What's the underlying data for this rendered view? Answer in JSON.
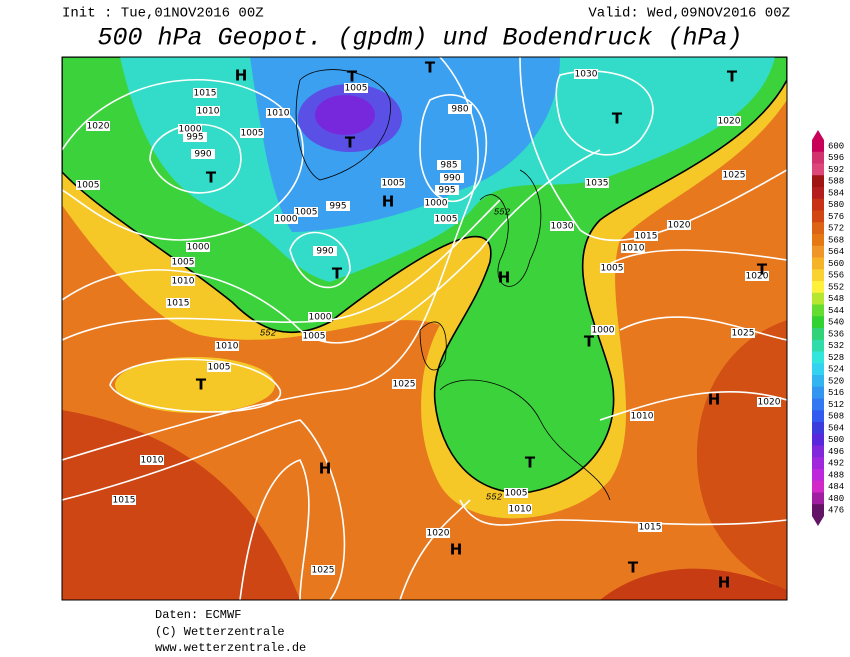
{
  "header": {
    "init": "Init : Tue,01NOV2016 00Z",
    "valid": "Valid: Wed,09NOV2016 00Z",
    "title": "500 hPa Geopot. (gpdm) und Bodendruck (hPa)"
  },
  "colorbar": {
    "levels": [
      600,
      596,
      592,
      588,
      584,
      580,
      576,
      572,
      568,
      564,
      560,
      556,
      552,
      548,
      544,
      540,
      536,
      532,
      528,
      524,
      520,
      516,
      512,
      508,
      504,
      500,
      496,
      492,
      488,
      484,
      480,
      476
    ],
    "colors": [
      "#c8005a",
      "#d2326e",
      "#dc4678",
      "#a01414",
      "#b41e1e",
      "#c83214",
      "#d24614",
      "#dc6414",
      "#e67814",
      "#f09628",
      "#f5b428",
      "#fad232",
      "#fff03c",
      "#b4e632",
      "#64dc32",
      "#32d232",
      "#32d278",
      "#32dcaa",
      "#32e6dc",
      "#32d2f0",
      "#32b4f0",
      "#3296f0",
      "#3278f0",
      "#325af0",
      "#3c3cdc",
      "#5a28dc",
      "#8228dc",
      "#a028dc",
      "#be28dc",
      "#d228c8",
      "#a01ea0",
      "#641464"
    ]
  },
  "map": {
    "isobar_labels": [
      "1015",
      "1010",
      "1020",
      "1000",
      "995",
      "990",
      "1005",
      "1010",
      "1005",
      "1005",
      "980",
      "985",
      "990",
      "995",
      "1000",
      "1005",
      "1005",
      "995",
      "1005",
      "1000",
      "990",
      "1000",
      "1005",
      "1010",
      "1015",
      "1030",
      "1020",
      "1035",
      "1025",
      "1030",
      "1020",
      "1015",
      "1010",
      "1005",
      "1020",
      "1000",
      "1025",
      "1010",
      "1005",
      "1000",
      "1005",
      "1025",
      "1010",
      "1020",
      "1010",
      "1015",
      "1005",
      "1010",
      "1020",
      "1015",
      "1025"
    ],
    "contour_552_labels": [
      "552",
      "552",
      "552"
    ],
    "pressure_centers": [
      "H",
      "T",
      "T",
      "T",
      "T",
      "T",
      "T",
      "H",
      "T",
      "H",
      "T",
      "T",
      "T",
      "H",
      "H",
      "T",
      "H",
      "T",
      "H"
    ]
  },
  "footer": [
    "Daten: ECMWF",
    "(C) Wetterzentrale",
    "www.wetterzentrale.de"
  ]
}
